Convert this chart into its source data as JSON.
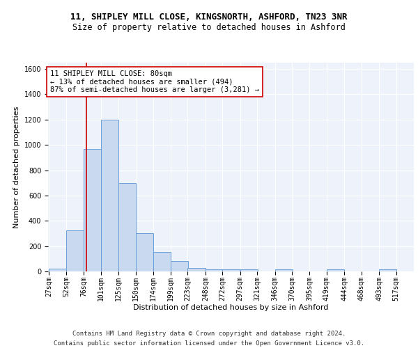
{
  "title1": "11, SHIPLEY MILL CLOSE, KINGSNORTH, ASHFORD, TN23 3NR",
  "title2": "Size of property relative to detached houses in Ashford",
  "xlabel": "Distribution of detached houses by size in Ashford",
  "ylabel": "Number of detached properties",
  "bar_color": "#c9d9f0",
  "bar_edge_color": "#6a9fd8",
  "background_color": "#eef2fb",
  "grid_color": "#ffffff",
  "bins": [
    27,
    52,
    76,
    101,
    125,
    150,
    174,
    199,
    223,
    248,
    272,
    297,
    321,
    346,
    370,
    395,
    419,
    444,
    468,
    493,
    517
  ],
  "values": [
    22,
    325,
    970,
    1200,
    700,
    305,
    155,
    80,
    25,
    15,
    15,
    15,
    0,
    15,
    0,
    0,
    15,
    0,
    0,
    15
  ],
  "property_size": 80,
  "annotation_line1": "11 SHIPLEY MILL CLOSE: 80sqm",
  "annotation_line2": "← 13% of detached houses are smaller (494)",
  "annotation_line3": "87% of semi-detached houses are larger (3,281) →",
  "annotation_box_color": "#ffffff",
  "annotation_box_edge_color": "#cc0000",
  "vline_color": "#cc0000",
  "ylim": [
    0,
    1650
  ],
  "yticks": [
    0,
    200,
    400,
    600,
    800,
    1000,
    1200,
    1400,
    1600
  ],
  "footer_text": "Contains HM Land Registry data © Crown copyright and database right 2024.\nContains public sector information licensed under the Open Government Licence v3.0.",
  "title1_fontsize": 9,
  "title2_fontsize": 8.5,
  "xlabel_fontsize": 8,
  "ylabel_fontsize": 8,
  "tick_fontsize": 7,
  "annotation_fontsize": 7.5,
  "footer_fontsize": 6.5
}
